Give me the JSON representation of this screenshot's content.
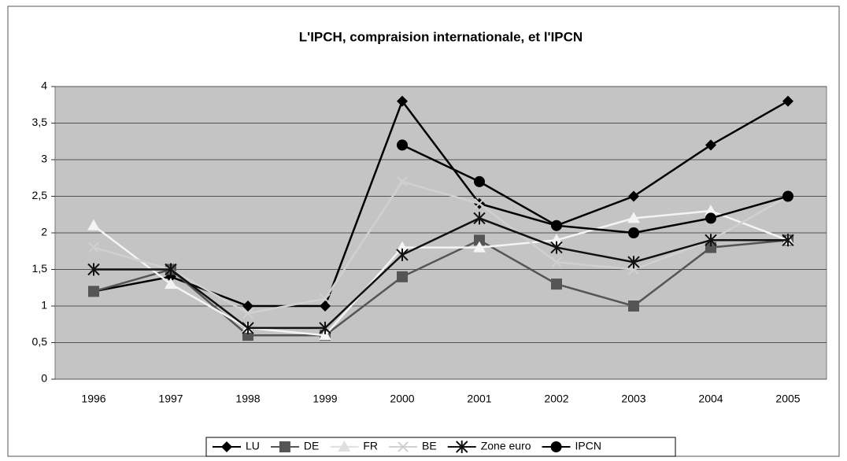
{
  "chart_data": {
    "type": "line",
    "title": "L'IPCH, compraision internationale, et l'IPCN",
    "categories": [
      "1996",
      "1997",
      "1998",
      "1999",
      "2000",
      "2001",
      "2002",
      "2003",
      "2004",
      "2005"
    ],
    "series": [
      {
        "name": "LU",
        "color": "#000000",
        "marker": "diamond",
        "values": [
          1.2,
          1.4,
          1.0,
          1.0,
          3.8,
          2.4,
          2.1,
          2.5,
          3.2,
          3.8
        ]
      },
      {
        "name": "DE",
        "color": "#555555",
        "marker": "square",
        "values": [
          1.2,
          1.5,
          0.6,
          0.6,
          1.4,
          1.9,
          1.3,
          1.0,
          1.8,
          1.9
        ]
      },
      {
        "name": "FR",
        "color": "#f4f4f4",
        "marker": "triangle",
        "values": [
          2.1,
          1.3,
          0.7,
          0.6,
          1.8,
          1.8,
          1.9,
          2.2,
          2.3,
          1.9
        ]
      },
      {
        "name": "BE",
        "color": "#d0d0d0",
        "marker": "cross",
        "values": [
          1.8,
          1.5,
          0.9,
          1.1,
          2.7,
          2.4,
          1.6,
          1.5,
          1.9,
          2.5
        ]
      },
      {
        "name": "Zone euro",
        "color": "#111111",
        "marker": "star",
        "values": [
          1.5,
          1.5,
          0.7,
          0.7,
          1.7,
          2.2,
          1.8,
          1.6,
          1.9,
          1.9
        ]
      },
      {
        "name": "IPCN",
        "color": "#000000",
        "marker": "circle",
        "values": [
          null,
          null,
          null,
          null,
          3.2,
          2.7,
          2.1,
          2.0,
          2.2,
          2.5
        ]
      }
    ],
    "ylim": [
      0,
      4
    ],
    "yticks": [
      0,
      {
        "value": 0.5,
        "label": "0,5"
      },
      1,
      {
        "value": 1.5,
        "label": "1,5"
      },
      2,
      {
        "value": 2.5,
        "label": "2,5"
      },
      3,
      {
        "value": 3.5,
        "label": "3,5"
      },
      4
    ],
    "grid": true,
    "legend": "bottom"
  }
}
